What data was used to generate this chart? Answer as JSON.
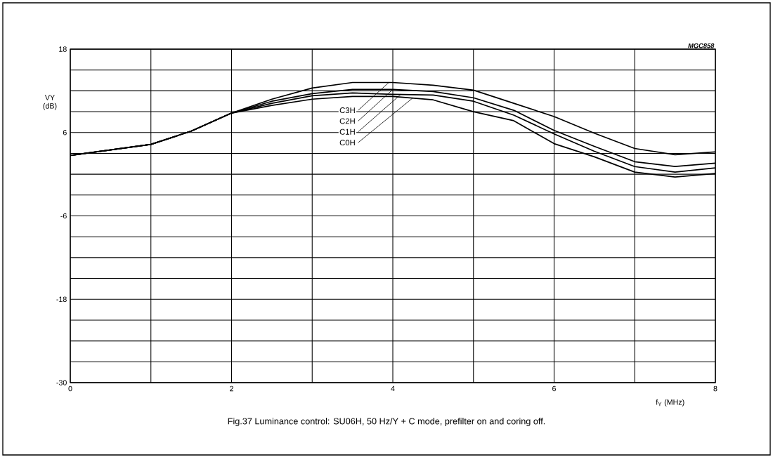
{
  "chart_data": {
    "type": "line",
    "title": "Fig.37  Luminance control: SU06H, 50 Hz/Y + C mode, prefilter on and coring off.",
    "xlabel": "f$_{Y}$ (MHz)",
    "ylabel": "VY (dB)",
    "annotations": [
      "MGC858",
      {
        "text": "C3H",
        "x": 3.95,
        "y": 13.2
      },
      {
        "text": "C2H",
        "x": 4.0,
        "y": 12.2
      },
      {
        "text": "C1H",
        "x": 4.1,
        "y": 11.5
      },
      {
        "text": "C0H",
        "x": 4.25,
        "y": 11.0
      }
    ],
    "x": [
      0,
      1,
      1.5,
      2,
      2.5,
      3,
      3.5,
      4,
      4.5,
      5,
      5.5,
      6,
      6.5,
      7,
      7.5,
      8
    ],
    "series": [
      {
        "color": "#000000",
        "values": [
          2.7,
          4.3,
          6.2,
          8.8,
          10.8,
          12.4,
          13.2,
          13.2,
          12.8,
          12.1,
          10.2,
          8.3,
          5.9,
          3.7,
          2.8,
          3.2
        ]
      },
      {
        "color": "#000000",
        "values": [
          2.7,
          4.3,
          6.2,
          8.8,
          10.5,
          11.6,
          12.2,
          12.2,
          11.9,
          11.0,
          9.2,
          6.3,
          4.0,
          1.8,
          1.1,
          1.6
        ]
      },
      {
        "color": "#000000",
        "values": [
          2.7,
          4.3,
          6.2,
          8.8,
          10.2,
          11.3,
          11.7,
          11.5,
          11.4,
          10.5,
          8.5,
          5.8,
          3.3,
          1.1,
          0.3,
          0.9
        ]
      },
      {
        "color": "#000000",
        "values": [
          2.7,
          4.3,
          6.2,
          8.8,
          9.9,
          10.8,
          11.2,
          11.2,
          10.7,
          9.0,
          7.7,
          4.4,
          2.5,
          0.3,
          -0.4,
          0.1
        ]
      }
    ],
    "xlim": [
      0,
      8
    ],
    "ylim": [
      -30,
      18
    ],
    "xticks": [
      0,
      {
        "value": 1,
        "label": null
      },
      2,
      {
        "value": 3,
        "label": null
      },
      4,
      {
        "value": 5,
        "label": null
      },
      6,
      {
        "value": 7,
        "label": null
      },
      8
    ],
    "yticks": [
      -30,
      {
        "value": -27,
        "label": null
      },
      {
        "value": -24,
        "label": null
      },
      {
        "value": -21,
        "label": null
      },
      -18,
      {
        "value": -15,
        "label": null
      },
      {
        "value": -12,
        "label": null
      },
      {
        "value": -9,
        "label": null
      },
      -6,
      {
        "value": -3,
        "label": null
      },
      {
        "value": 0,
        "label": null
      },
      {
        "value": 3,
        "label": null
      },
      6,
      {
        "value": 9,
        "label": null
      },
      {
        "value": 12,
        "label": null
      },
      {
        "value": 15,
        "label": null
      },
      18
    ],
    "grid": true,
    "line_style": "solid"
  }
}
